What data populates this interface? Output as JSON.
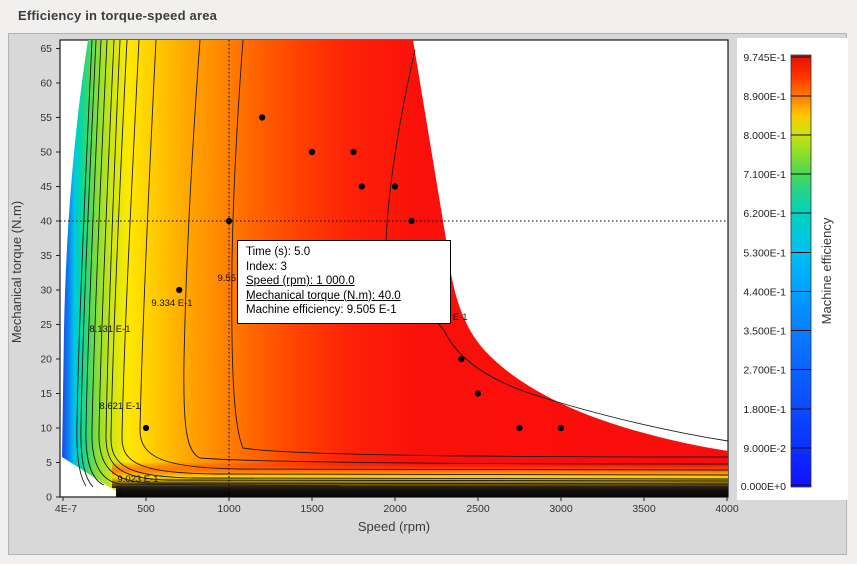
{
  "window": {
    "title": "Efficiency in torque-speed area"
  },
  "chart_data": {
    "type": "contour",
    "title": "Efficiency in torque-speed area",
    "xlabel": "Speed (rpm)",
    "ylabel": "Mechanical torque (N.m)",
    "x_ticks": [
      "4E-7",
      "500",
      "1000",
      "1500",
      "2000",
      "2500",
      "3000",
      "3500",
      "4000"
    ],
    "x_range_rpm": [
      0,
      4000
    ],
    "y_ticks": [
      "0",
      "5",
      "10",
      "15",
      "20",
      "25",
      "30",
      "35",
      "40",
      "45",
      "50",
      "55",
      "60",
      "65"
    ],
    "y_range_nm": [
      0,
      66
    ],
    "grid": false,
    "colorbar": {
      "label": "Machine efficiency",
      "ticks": [
        "9.745E-1",
        "8.900E-1",
        "8.000E-1",
        "7.100E-1",
        "6.200E-1",
        "5.300E-1",
        "4.400E-1",
        "3.500E-1",
        "2.700E-1",
        "1.800E-1",
        "9.000E-2",
        "0.000E+0"
      ],
      "top_color": "#e01000",
      "bottom_color": "#1010ff"
    },
    "contour_labels": [
      {
        "text": "8.131 E-1"
      },
      {
        "text": "8.621 E-1"
      },
      {
        "text": "9.023 E-1"
      },
      {
        "text": "9.334 E-1"
      },
      {
        "text": "9.55"
      },
      {
        "text": "9.736 E-1"
      }
    ],
    "scatter_points": [
      [
        500,
        10
      ],
      [
        700,
        30
      ],
      [
        1000,
        40
      ],
      [
        1200,
        55
      ],
      [
        1500,
        50
      ],
      [
        1750,
        50
      ],
      [
        1800,
        45
      ],
      [
        2000,
        45
      ],
      [
        2100,
        40
      ],
      [
        2200,
        35
      ],
      [
        2300,
        30
      ],
      [
        2400,
        20
      ],
      [
        2500,
        15
      ],
      [
        2750,
        10
      ],
      [
        3000,
        10
      ]
    ],
    "crosshair": {
      "speed": 1000,
      "torque": 40
    }
  },
  "tooltip": {
    "lines": [
      {
        "text": "Time (s): 5.0",
        "underline": false
      },
      {
        "text": "Index: 3",
        "underline": false
      },
      {
        "text": "Speed (rpm): 1 000.0",
        "underline": true
      },
      {
        "text": "Mechanical torque (N.m): 40.0",
        "underline": true
      },
      {
        "text": "Machine efficiency: 9.505 E-1",
        "underline": false
      }
    ]
  }
}
